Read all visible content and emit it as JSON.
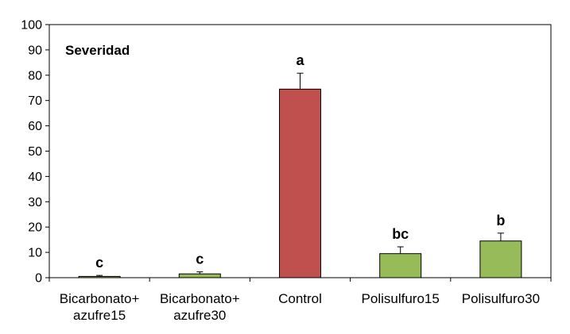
{
  "chart_data": {
    "type": "bar",
    "title": "Severidad",
    "xlabel": "",
    "ylabel": "",
    "ylim": [
      0,
      100
    ],
    "yticks": [
      0,
      10,
      20,
      30,
      40,
      50,
      60,
      70,
      80,
      90,
      100
    ],
    "grid": false,
    "legend": "none",
    "categories": [
      [
        "Bicarbonato+",
        "azufre15"
      ],
      [
        "Bicarbonato+",
        "azufre30"
      ],
      [
        "Control"
      ],
      [
        "Polisulfuro15"
      ],
      [
        "Polisulfuro30"
      ]
    ],
    "values": [
      0.5,
      1.5,
      74.5,
      9.5,
      14.5
    ],
    "errors": [
      0.4,
      0.8,
      6.3,
      2.7,
      3.1
    ],
    "significance": [
      "c",
      "c",
      "a",
      "bc",
      "b"
    ],
    "colors": [
      "#98BB59",
      "#98BB59",
      "#C0504D",
      "#98BB59",
      "#98BB59"
    ]
  }
}
